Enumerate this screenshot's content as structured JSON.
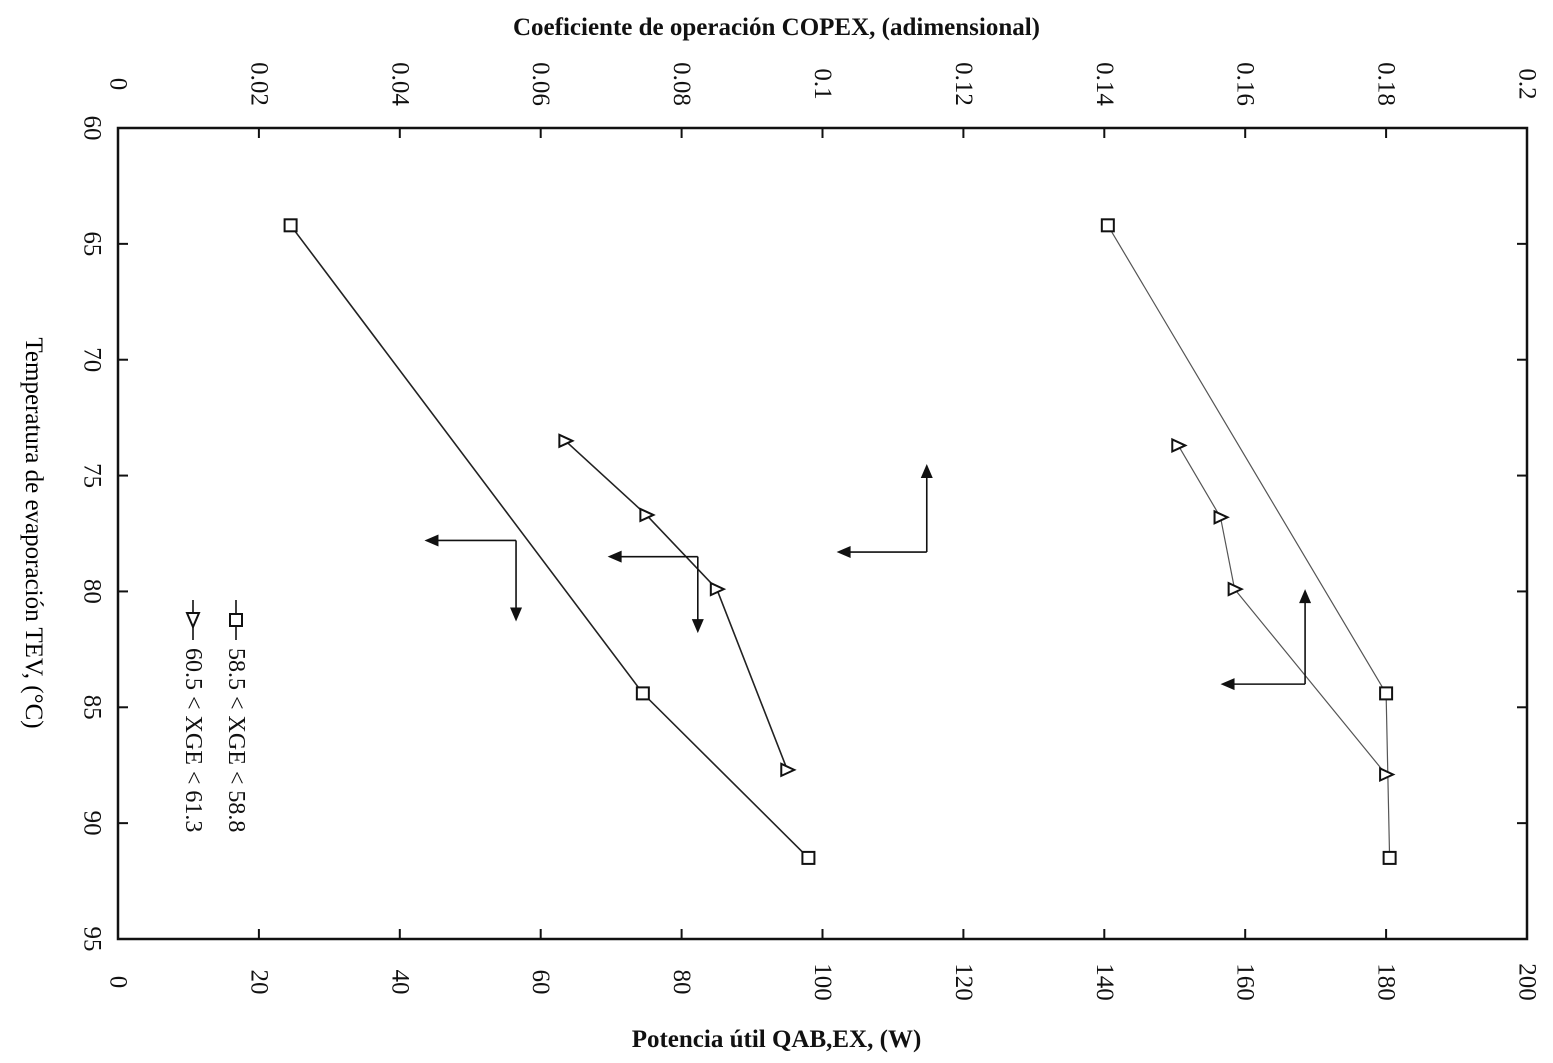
{
  "chart_data": {
    "type": "line",
    "title": "",
    "x_axis": {
      "label": "Temperatura de evaporación TEV, (°C)",
      "range": [
        60,
        95
      ],
      "ticks": [
        "60",
        "65",
        "70",
        "75",
        "80",
        "85",
        "90",
        "95"
      ]
    },
    "y_axis_bottom": {
      "label": "Potencia útil QAB,EX, (W)",
      "range": [
        0,
        200
      ],
      "ticks": [
        "0",
        "20",
        "40",
        "60",
        "80",
        "100",
        "120",
        "140",
        "160",
        "180",
        "200"
      ]
    },
    "y_axis_top": {
      "label": "Coeficiente de operación COPEX, (adimensional)",
      "range": [
        0,
        0.2
      ],
      "ticks": [
        "0",
        "0.02",
        "0.04",
        "0.06",
        "0.08",
        "0.1",
        "0.12",
        "0.14",
        "0.16",
        "0.18",
        "0.2"
      ]
    },
    "series": [
      {
        "name": "58.5 < XGE < 58.8",
        "marker": "square",
        "axis": "potencia",
        "x": [
          64.2,
          84.4,
          91.5
        ],
        "y": [
          140.5,
          180.0,
          180.5
        ]
      },
      {
        "name": "58.5 < XGE < 58.8",
        "marker": "square",
        "axis": "cop",
        "x": [
          64.2,
          84.4,
          91.5
        ],
        "y": [
          0.0245,
          0.0745,
          0.098
        ]
      },
      {
        "name": "60.5 < XGE < 61.3",
        "marker": "triangle",
        "axis": "potencia",
        "x": [
          73.7,
          76.8,
          79.9,
          87.9
        ],
        "y": [
          150.5,
          156.5,
          158.5,
          180.0
        ]
      },
      {
        "name": "60.5 < XGE < 61.3",
        "marker": "triangle",
        "axis": "cop",
        "x": [
          73.5,
          76.7,
          79.9,
          87.7
        ],
        "y": [
          0.0635,
          0.075,
          0.085,
          0.095
        ]
      }
    ],
    "legend": {
      "placement": "bottom-left",
      "entries": [
        {
          "label": "58.5 < XGE < 58.8",
          "marker": "square"
        },
        {
          "label": "60.5 < XGE < 61.3",
          "marker": "triangle"
        }
      ]
    },
    "annotations": [
      {
        "type": "axis-indicator",
        "at_x": 78.3,
        "from": {
          "scale": "potencia",
          "value": 114.8
        },
        "horizontal_to": {
          "scale": "potencia",
          "value": 102.0
        },
        "vertical_to_x": 74.5,
        "direction": "toward-top-axis"
      },
      {
        "type": "axis-indicator",
        "at_x": 84.0,
        "from": {
          "scale": "potencia",
          "value": 168.5
        },
        "horizontal_to": {
          "scale": "potencia",
          "value": 156.5
        },
        "vertical_to_x": 79.9,
        "direction": "toward-top-axis"
      },
      {
        "type": "axis-indicator",
        "at_x": 78.5,
        "from": {
          "scale": "potencia",
          "value": 82.3
        },
        "horizontal_to": {
          "scale": "potencia",
          "value": 69.5
        },
        "vertical_to_x": 81.8,
        "direction": "toward-bottom-axis"
      },
      {
        "type": "axis-indicator",
        "at_x": 77.8,
        "from": {
          "scale": "potencia",
          "value": 56.5
        },
        "horizontal_to": {
          "scale": "potencia",
          "value": 43.5
        },
        "vertical_to_x": 81.3,
        "direction": "toward-bottom-axis"
      }
    ],
    "grid": false
  }
}
